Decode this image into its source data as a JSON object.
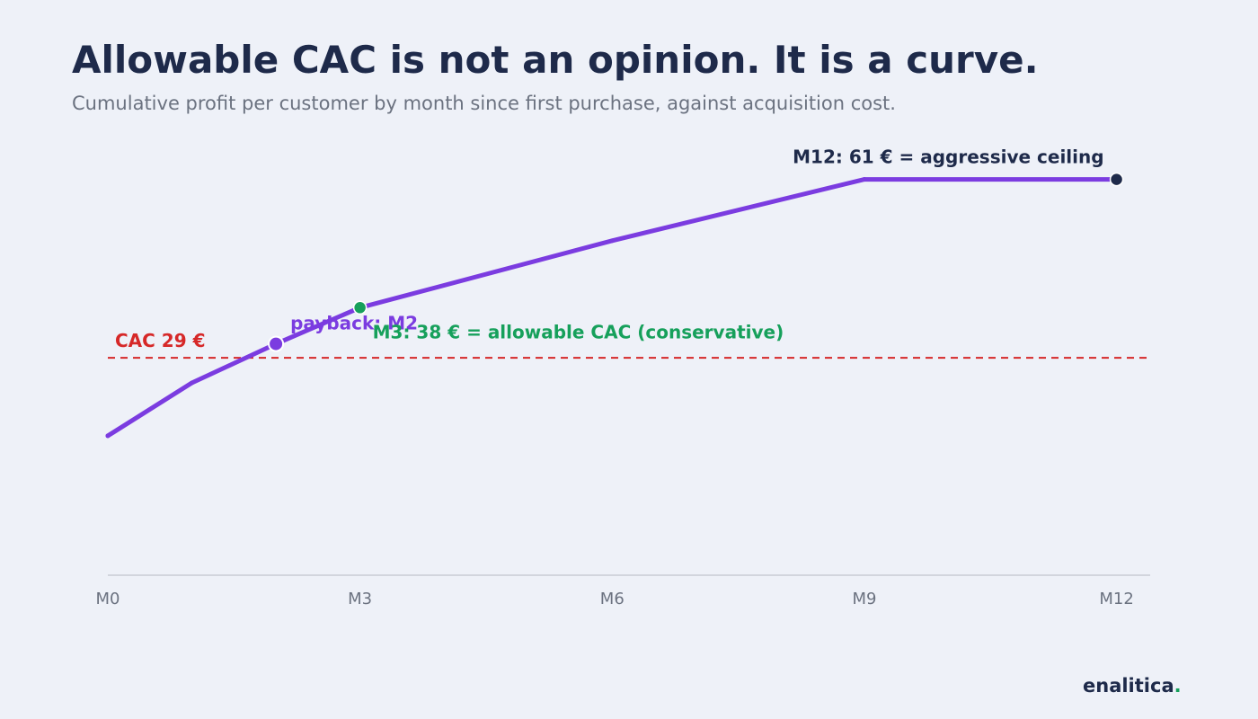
{
  "title": "Allowable CAC is not an opinion. It is a curve.",
  "subtitle": "Cumulative profit per customer by month since first purchase, against acquisition cost.",
  "brand": {
    "name": "enalitica",
    "dot": "."
  },
  "colors": {
    "line": "#7b3ce0",
    "cac": "#d62828",
    "allowable": "#16a05b",
    "ceiling": "#1e2a4a",
    "axis": "#c8ccd4",
    "tick": "#6b7280"
  },
  "chart_data": {
    "type": "line",
    "title": "Allowable CAC is not an opinion. It is a curve.",
    "subtitle": "Cumulative profit per customer by month since first purchase, against acquisition cost.",
    "xlabel": "",
    "ylabel": "",
    "xlim": [
      0,
      12.4
    ],
    "ylim": [
      -10,
      69
    ],
    "grid": false,
    "x_ticks": [
      {
        "value": 0,
        "label": "M0"
      },
      {
        "value": 3,
        "label": "M3"
      },
      {
        "value": 6,
        "label": "M6"
      },
      {
        "value": 9,
        "label": "M9"
      },
      {
        "value": 12,
        "label": "M12"
      }
    ],
    "series": [
      {
        "x": [
          0,
          1,
          2,
          3,
          6,
          9,
          12
        ],
        "values": [
          15,
          24.5,
          31.5,
          38,
          50,
          61,
          61
        ]
      }
    ],
    "threshold": {
      "value": 29,
      "label": "CAC 29 €"
    },
    "annotations": {
      "payback": {
        "x": 2,
        "y": 31.5,
        "label": "payback: M2"
      },
      "allowable": {
        "x": 3,
        "y": 38,
        "label": "M3: 38 € = allowable CAC (conservative)"
      },
      "ceiling": {
        "x": 12,
        "y": 61,
        "label": "M12: 61 € = aggressive ceiling"
      }
    }
  }
}
